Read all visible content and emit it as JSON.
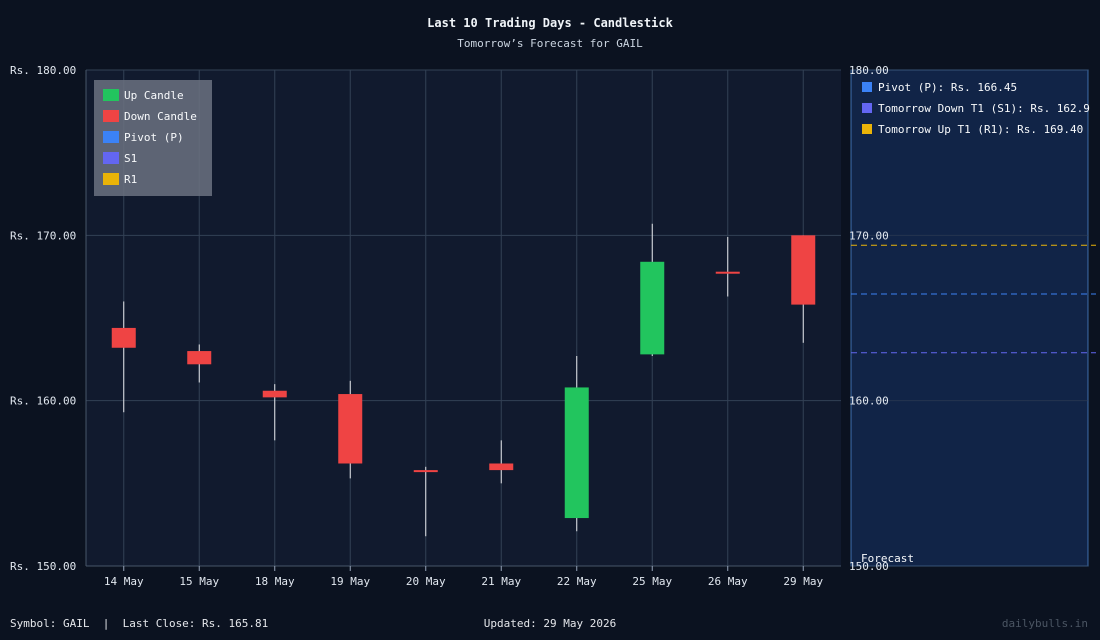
{
  "chart_data": {
    "type": "candlestick",
    "title": "Last 10 Trading Days - Candlestick",
    "subtitle": "Tomorrow’s Forecast for GAIL",
    "ylim": [
      150,
      180
    ],
    "y_ticks": [
      150,
      160,
      170,
      180
    ],
    "y_tick_labels": [
      "Rs. 150.00",
      "Rs. 160.00",
      "Rs. 170.00",
      "Rs. 180.00"
    ],
    "right_tick_labels": [
      "150.00",
      "160.00",
      "170.00",
      "180.00"
    ],
    "grid": true,
    "categories": [
      "14 May",
      "15 May",
      "18 May",
      "19 May",
      "20 May",
      "21 May",
      "22 May",
      "25 May",
      "26 May",
      "29 May"
    ],
    "candles": [
      {
        "open": 164.4,
        "high": 166.0,
        "low": 159.3,
        "close": 163.2
      },
      {
        "open": 163.0,
        "high": 163.4,
        "low": 161.1,
        "close": 162.2
      },
      {
        "open": 160.6,
        "high": 161.0,
        "low": 157.6,
        "close": 160.2
      },
      {
        "open": 160.4,
        "high": 161.2,
        "low": 155.3,
        "close": 156.2
      },
      {
        "open": 155.8,
        "high": 156.0,
        "low": 151.8,
        "close": 155.7
      },
      {
        "open": 156.2,
        "high": 157.6,
        "low": 155.0,
        "close": 155.8
      },
      {
        "open": 152.9,
        "high": 162.7,
        "low": 152.1,
        "close": 160.8
      },
      {
        "open": 162.8,
        "high": 170.7,
        "low": 162.7,
        "close": 168.4
      },
      {
        "open": 167.8,
        "high": 169.9,
        "low": 166.3,
        "close": 167.7
      },
      {
        "open": 170.0,
        "high": 170.0,
        "low": 163.5,
        "close": 165.81
      }
    ],
    "legend": {
      "placement": "top-left",
      "items": [
        {
          "label": "Up Candle",
          "color": "#22c55e"
        },
        {
          "label": "Down Candle",
          "color": "#ef4444"
        },
        {
          "label": "Pivot (P)",
          "color": "#3b82f6"
        },
        {
          "label": "S1",
          "color": "#6366f1"
        },
        {
          "label": "R1",
          "color": "#eab308"
        }
      ]
    },
    "forecast": {
      "label": "Forecast",
      "levels": [
        {
          "label": "Pivot (P): Rs. 166.45",
          "value": 166.45,
          "color": "#3b82f6"
        },
        {
          "label": "Tomorrow Down T1 (S1): Rs. 162.9",
          "value": 162.9,
          "color": "#6366f1"
        },
        {
          "label": "Tomorrow Up T1 (R1): Rs. 169.40",
          "value": 169.4,
          "color": "#eab308"
        }
      ]
    },
    "colors": {
      "up": "#22c55e",
      "down": "#ef4444",
      "background": "#0b1220",
      "plot": "#111a2e",
      "forecast_bg": "#112447"
    }
  },
  "footer": {
    "left": "Symbol: GAIL  |  Last Close: Rs. 165.81",
    "center": "Updated: 29 May 2026",
    "brand": "dailybulls.in"
  }
}
